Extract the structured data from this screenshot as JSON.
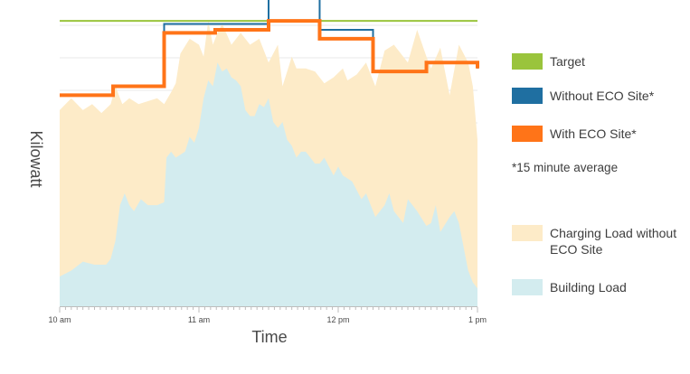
{
  "chart_data": {
    "type": "area",
    "ylabel": "Kilowatt",
    "xlabel": "Time",
    "x_ticks": [
      {
        "label": "10 am",
        "t": 0
      },
      {
        "label": "11 am",
        "t": 60
      },
      {
        "label": "12 pm",
        "t": 120
      },
      {
        "label": "1 pm",
        "t": 180
      }
    ],
    "xlim": [
      0,
      180
    ],
    "ylim": [
      0,
      100
    ],
    "grid": true,
    "legend_placement": "right",
    "note": "*15 minute average",
    "series": [
      {
        "name": "Charging Load without ECO Site",
        "type": "area",
        "color": "#fdebc8",
        "x": [
          0,
          5,
          10,
          14,
          18,
          22,
          24,
          27,
          30,
          34,
          38,
          42,
          45,
          48,
          50,
          52,
          56,
          60,
          62,
          64,
          66,
          68,
          70,
          74,
          78,
          82,
          86,
          90,
          94,
          96,
          98,
          100,
          102,
          106,
          110,
          114,
          118,
          122,
          124,
          128,
          132,
          136,
          140,
          144,
          150,
          154,
          158,
          160,
          164,
          168,
          172,
          176,
          178,
          180
        ],
        "y": [
          66,
          70,
          66,
          68,
          65,
          68,
          74,
          68,
          70,
          68,
          69,
          70,
          68,
          72,
          75,
          85,
          90,
          88,
          84,
          96,
          88,
          92,
          95,
          88,
          92,
          88,
          90,
          82,
          88,
          74,
          79,
          84,
          80,
          80,
          79,
          75,
          77,
          80,
          76,
          78,
          82,
          74,
          86,
          88,
          82,
          93,
          84,
          80,
          87,
          71,
          88,
          82,
          74,
          56
        ]
      },
      {
        "name": "Building Load",
        "type": "area",
        "color": "#d3ecef",
        "x": [
          0,
          5,
          10,
          15,
          20,
          22,
          24,
          26,
          28,
          30,
          32,
          35,
          38,
          42,
          45,
          46,
          48,
          50,
          54,
          56,
          58,
          60,
          62,
          64,
          66,
          68,
          70,
          72,
          74,
          76,
          78,
          80,
          82,
          84,
          86,
          88,
          90,
          92,
          94,
          96,
          98,
          100,
          102,
          104,
          106,
          110,
          112,
          114,
          118,
          120,
          122,
          126,
          130,
          132,
          136,
          140,
          142,
          144,
          148,
          150,
          154,
          158,
          160,
          162,
          164,
          168,
          170,
          172,
          174,
          176,
          178,
          180
        ],
        "y": [
          10,
          12,
          15,
          14,
          14,
          16,
          22,
          34,
          38,
          34,
          32,
          36,
          34,
          34,
          35,
          50,
          52,
          50,
          52,
          57,
          55,
          60,
          70,
          76,
          74,
          82,
          79,
          80,
          77,
          76,
          74,
          66,
          64,
          64,
          68,
          67,
          70,
          62,
          60,
          62,
          56,
          54,
          50,
          52,
          52,
          48,
          48,
          50,
          44,
          47,
          44,
          42,
          36,
          38,
          30,
          34,
          38,
          32,
          28,
          36,
          32,
          27,
          28,
          34,
          25,
          30,
          32,
          28,
          20,
          12,
          8,
          6
        ]
      },
      {
        "name": "Target",
        "type": "line",
        "color": "#9ac43c",
        "x": [
          0,
          180
        ],
        "y": [
          96,
          96
        ]
      },
      {
        "name": "Without ECO Site*",
        "type": "step",
        "color": "#1f6fa1",
        "x": [
          0,
          23,
          45,
          67,
          90,
          112,
          135,
          158,
          180
        ],
        "y": [
          71,
          74,
          95,
          95,
          109,
          93,
          79,
          82,
          80
        ]
      },
      {
        "name": "With ECO Site*",
        "type": "step",
        "color": "#ff7418",
        "x": [
          0,
          23,
          45,
          67,
          90,
          112,
          135,
          158,
          180
        ],
        "y": [
          71,
          74,
          92,
          93,
          96,
          90,
          79,
          82,
          80
        ]
      }
    ]
  },
  "legend": {
    "items": [
      {
        "label": "Target",
        "color": "#9ac43c"
      },
      {
        "label": "Without ECO Site*",
        "color": "#1f6fa1"
      },
      {
        "label": "With ECO Site*",
        "color": "#ff7418"
      },
      {
        "label": "Charging Load without ECO Site",
        "color": "#fdebc8"
      },
      {
        "label": "Building Load",
        "color": "#d3ecef"
      }
    ],
    "note": "*15 minute average"
  }
}
